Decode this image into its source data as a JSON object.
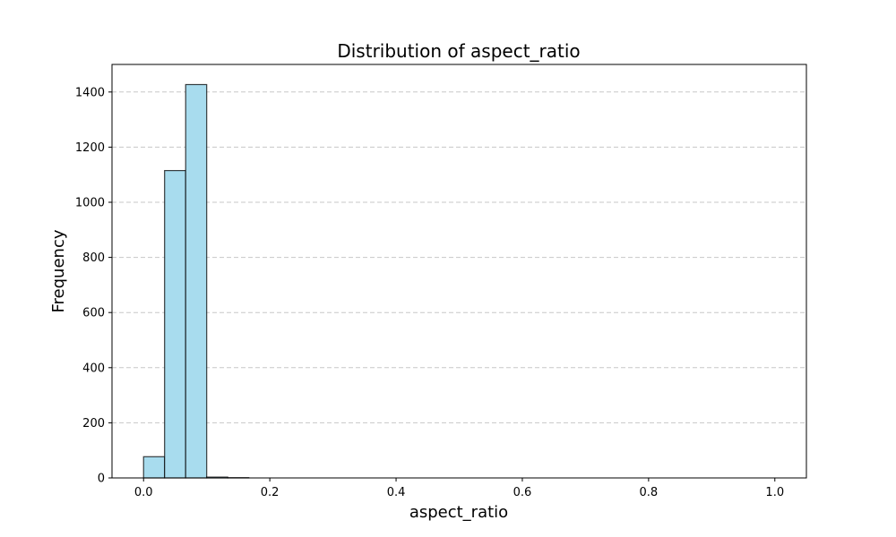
{
  "chart_data": {
    "type": "bar",
    "title": "Distribution of aspect_ratio",
    "xlabel": "aspect_ratio",
    "ylabel": "Frequency",
    "xlim": [
      -0.05,
      1.05
    ],
    "ylim": [
      0,
      1500
    ],
    "xticks": [
      0.0,
      0.2,
      0.4,
      0.6,
      0.8,
      1.0
    ],
    "xtick_labels": [
      "0.0",
      "0.2",
      "0.4",
      "0.6",
      "0.8",
      "1.0"
    ],
    "yticks": [
      0,
      200,
      400,
      600,
      800,
      1000,
      1200,
      1400
    ],
    "ytick_labels": [
      "0",
      "200",
      "400",
      "600",
      "800",
      "1000",
      "1200",
      "1400"
    ],
    "grid": "y-dashed",
    "bar_color": "#a8dcee",
    "bins": [
      {
        "x0": 0.0,
        "x1": 0.0333,
        "count": 77
      },
      {
        "x0": 0.0333,
        "x1": 0.0667,
        "count": 1115
      },
      {
        "x0": 0.0667,
        "x1": 0.1,
        "count": 1427
      },
      {
        "x0": 0.1,
        "x1": 0.1333,
        "count": 3
      },
      {
        "x0": 0.1333,
        "x1": 0.1667,
        "count": 1
      },
      {
        "x0": 0.1667,
        "x1": 0.2,
        "count": 0
      },
      {
        "x0": 0.2,
        "x1": 0.2333,
        "count": 0
      },
      {
        "x0": 0.2333,
        "x1": 0.2667,
        "count": 0
      },
      {
        "x0": 0.2667,
        "x1": 0.3,
        "count": 0
      },
      {
        "x0": 0.3,
        "x1": 0.3333,
        "count": 0
      },
      {
        "x0": 0.3333,
        "x1": 0.3667,
        "count": 0
      },
      {
        "x0": 0.3667,
        "x1": 0.4,
        "count": 0
      },
      {
        "x0": 0.4,
        "x1": 0.4333,
        "count": 0
      },
      {
        "x0": 0.4333,
        "x1": 0.4667,
        "count": 0
      },
      {
        "x0": 0.4667,
        "x1": 0.5,
        "count": 0
      },
      {
        "x0": 0.5,
        "x1": 0.5333,
        "count": 0
      },
      {
        "x0": 0.5333,
        "x1": 0.5667,
        "count": 0
      },
      {
        "x0": 0.5667,
        "x1": 0.6,
        "count": 0
      },
      {
        "x0": 0.6,
        "x1": 0.6333,
        "count": 0
      },
      {
        "x0": 0.6333,
        "x1": 0.6667,
        "count": 0
      },
      {
        "x0": 0.6667,
        "x1": 0.7,
        "count": 0
      },
      {
        "x0": 0.7,
        "x1": 0.7333,
        "count": 0
      },
      {
        "x0": 0.7333,
        "x1": 0.7667,
        "count": 0
      },
      {
        "x0": 0.7667,
        "x1": 0.8,
        "count": 0
      },
      {
        "x0": 0.8,
        "x1": 0.8333,
        "count": 0
      },
      {
        "x0": 0.8333,
        "x1": 0.8667,
        "count": 0
      },
      {
        "x0": 0.8667,
        "x1": 0.9,
        "count": 0
      },
      {
        "x0": 0.9,
        "x1": 0.9333,
        "count": 0
      },
      {
        "x0": 0.9333,
        "x1": 0.9667,
        "count": 0
      },
      {
        "x0": 0.9667,
        "x1": 1.0,
        "count": 0
      }
    ]
  }
}
